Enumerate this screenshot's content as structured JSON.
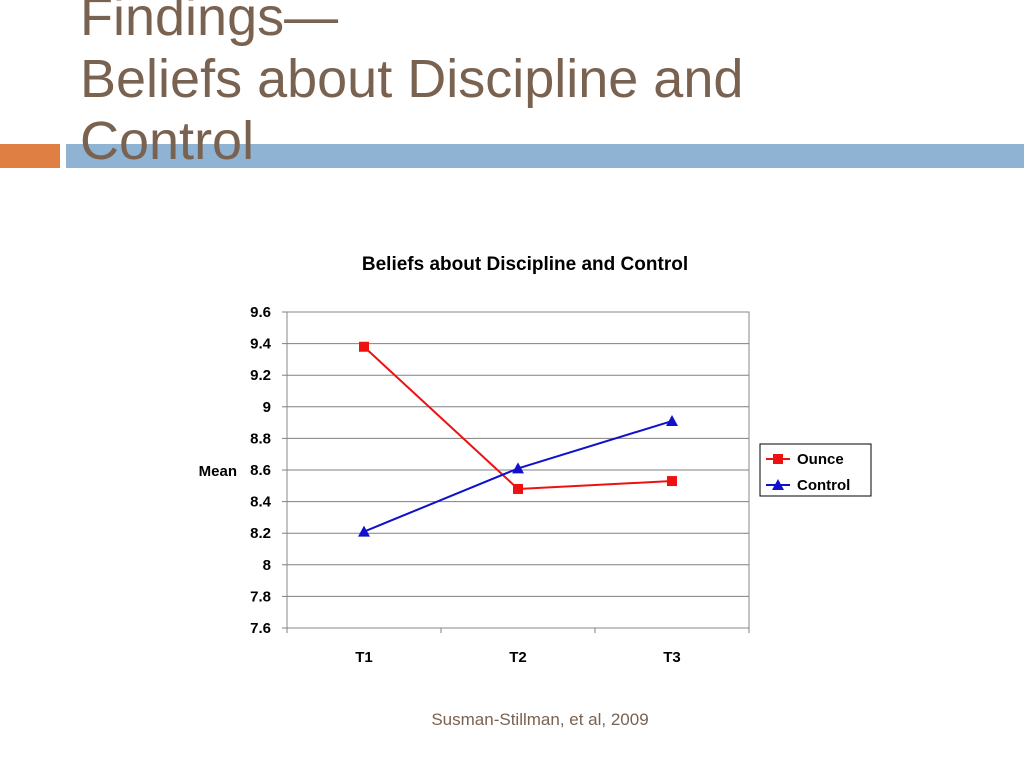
{
  "slide": {
    "title_line1": "Findings—",
    "title_line2": "Beliefs about Discipline and",
    "title_line3": "Control",
    "citation": "Susman-Stillman, et al, 2009",
    "accent_colors": {
      "orange": "#e07f43",
      "blue": "#8fb3d3",
      "title": "#7a6250"
    }
  },
  "chart_data": {
    "type": "line",
    "title": "Beliefs about Discipline and Control",
    "xlabel": "",
    "ylabel": "Mean",
    "categories": [
      "T1",
      "T2",
      "T3"
    ],
    "ylim": [
      7.6,
      9.6
    ],
    "yticks": [
      "9.6",
      "9.4",
      "9.2",
      "9",
      "8.8",
      "8.6",
      "8.4",
      "8.2",
      "8",
      "7.8",
      "7.6"
    ],
    "grid": true,
    "legend_position": "right",
    "series": [
      {
        "name": "Ounce",
        "values": [
          9.38,
          8.48,
          8.53
        ],
        "color": "#ee1111",
        "marker": "square"
      },
      {
        "name": "Control",
        "values": [
          8.21,
          8.61,
          8.91
        ],
        "color": "#1111cc",
        "marker": "triangle"
      }
    ]
  }
}
